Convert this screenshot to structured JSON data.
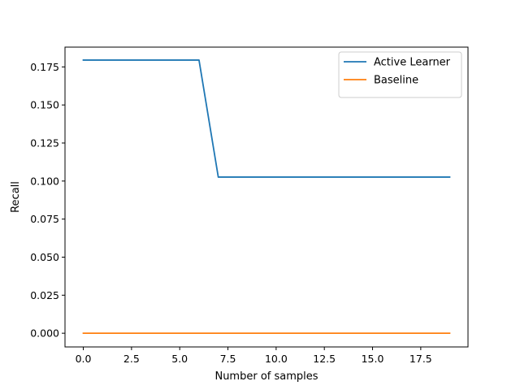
{
  "chart_data": {
    "type": "line",
    "title": "",
    "xlabel": "Number of samples",
    "ylabel": "Recall",
    "xlim": [
      -0.95,
      19.95
    ],
    "ylim": [
      -0.009,
      0.188
    ],
    "x_ticks": [
      0.0,
      2.5,
      5.0,
      7.5,
      10.0,
      12.5,
      15.0,
      17.5
    ],
    "x_tick_labels": [
      "0.0",
      "2.5",
      "5.0",
      "7.5",
      "10.0",
      "12.5",
      "15.0",
      "17.5"
    ],
    "y_ticks": [
      0.0,
      0.025,
      0.05,
      0.075,
      0.1,
      0.125,
      0.15,
      0.175
    ],
    "y_tick_labels": [
      "0.000",
      "0.025",
      "0.050",
      "0.075",
      "0.100",
      "0.125",
      "0.150",
      "0.175"
    ],
    "grid": false,
    "legend_position": "upper right",
    "series": [
      {
        "name": "Active Learner",
        "color": "#1f77b4",
        "x": [
          0,
          1,
          2,
          3,
          4,
          5,
          6,
          7,
          8,
          9,
          10,
          11,
          12,
          13,
          14,
          15,
          16,
          17,
          18,
          19
        ],
        "values": [
          0.1795,
          0.1795,
          0.1795,
          0.1795,
          0.1795,
          0.1795,
          0.1795,
          0.1026,
          0.1026,
          0.1026,
          0.1026,
          0.1026,
          0.1026,
          0.1026,
          0.1026,
          0.1026,
          0.1026,
          0.1026,
          0.1026,
          0.1026
        ]
      },
      {
        "name": "Baseline",
        "color": "#ff7f0e",
        "x": [
          0,
          1,
          2,
          3,
          4,
          5,
          6,
          7,
          8,
          9,
          10,
          11,
          12,
          13,
          14,
          15,
          16,
          17,
          18,
          19
        ],
        "values": [
          0,
          0,
          0,
          0,
          0,
          0,
          0,
          0,
          0,
          0,
          0,
          0,
          0,
          0,
          0,
          0,
          0,
          0,
          0,
          0
        ]
      }
    ]
  }
}
